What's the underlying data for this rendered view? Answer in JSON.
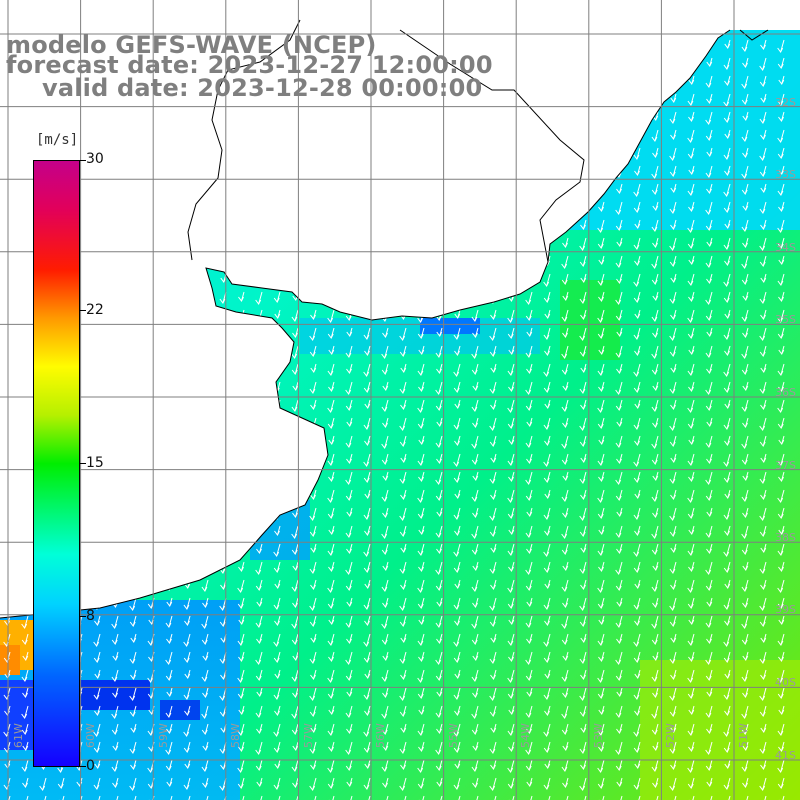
{
  "title": {
    "model": "modelo GEFS-WAVE (NCEP)",
    "forecast": "forecast date: 2023-12-27 12:00:00",
    "valid": "valid date: 2023-12-28 00:00:00"
  },
  "colorbar": {
    "units": "[m/s]",
    "labels": [
      "30",
      "22",
      "15",
      "8",
      "0"
    ],
    "values": [
      30,
      22,
      15,
      8,
      0
    ],
    "min": 0,
    "max": 30,
    "colors": {
      "low": "#1400ff",
      "mid_low": "#00d2ff",
      "mid": "#00ee00",
      "mid_high": "#fffc00",
      "high": "#ff1c00",
      "top": "#c4008a"
    }
  },
  "axes": {
    "lat_labels": [
      "32S",
      "33S",
      "34S",
      "35S",
      "36S",
      "37S",
      "38S",
      "39S",
      "40S",
      "41S"
    ],
    "lon_labels": [
      "61W",
      "60W",
      "59W",
      "58W",
      "57W",
      "56W",
      "55W",
      "54W",
      "53W",
      "52W",
      "51W"
    ]
  },
  "map": {
    "land_color": "#ffffff",
    "grid_color": "#7f7f7f",
    "coast_color": "#000000",
    "arrow_color": "#ffffff",
    "wind_direction": "toward south-southwest"
  }
}
